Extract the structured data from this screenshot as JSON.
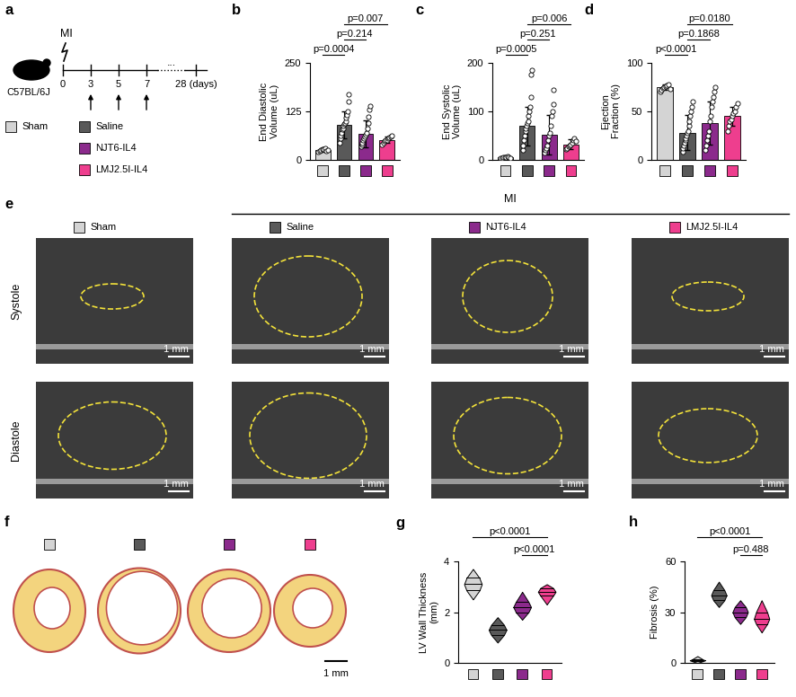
{
  "groups": [
    {
      "name": "Sham",
      "color": "#d4d4d4"
    },
    {
      "name": "Saline",
      "color": "#595959"
    },
    {
      "name": "NJT6-IL4",
      "color": "#8b2a8c"
    },
    {
      "name": "LMJ2.5I-IL4",
      "color": "#ee3e8e"
    }
  ],
  "timeline": {
    "panel": "a",
    "strain": "C57BL/6J",
    "event": "MI",
    "ticks": [
      0,
      3,
      5,
      7,
      {
        "value": 28,
        "label": "28 (days)"
      }
    ],
    "gap": "...",
    "treatment_days": [
      3,
      5,
      7
    ]
  },
  "chart_data": [
    {
      "panel": "b",
      "type": "bar",
      "ylabel": "End Diastolic\nVolume (uL)",
      "categories": [
        null,
        null,
        null,
        null
      ],
      "colors": [
        "#d4d4d4",
        "#595959",
        "#8b2a8c",
        "#ee3e8e"
      ],
      "values": [
        25,
        90,
        68,
        52
      ],
      "errors": [
        4,
        35,
        35,
        8
      ],
      "points": [
        [
          20,
          22,
          25,
          27,
          28,
          30,
          24,
          26
        ],
        [
          45,
          55,
          62,
          70,
          78,
          82,
          88,
          92,
          96,
          100,
          108,
          115,
          125,
          150,
          168
        ],
        [
          35,
          40,
          45,
          50,
          55,
          60,
          65,
          70,
          80,
          95,
          110,
          130,
          140
        ],
        [
          40,
          45,
          48,
          50,
          52,
          55,
          58,
          60,
          62
        ]
      ],
      "ylim": [
        0,
        250
      ],
      "yticks": [
        0,
        125,
        250
      ],
      "tick_labels": "y",
      "comparisons": [
        {
          "from": 0,
          "to": 1,
          "label": "p=0.0004"
        },
        {
          "from": 1,
          "to": 2,
          "label": "p=0.214"
        },
        {
          "from": 1,
          "to": 3,
          "label": "p=0.007"
        }
      ]
    },
    {
      "panel": "c",
      "type": "bar",
      "ylabel": "End Systolic\nVolume (uL)",
      "categories": [
        null,
        null,
        null,
        null
      ],
      "colors": [
        "#d4d4d4",
        "#595959",
        "#8b2a8c",
        "#ee3e8e"
      ],
      "values": [
        5,
        70,
        52,
        32
      ],
      "errors": [
        2,
        40,
        40,
        10
      ],
      "points": [
        [
          3,
          4,
          5,
          5,
          6,
          7,
          6,
          4
        ],
        [
          20,
          30,
          40,
          50,
          60,
          65,
          70,
          75,
          80,
          90,
          100,
          110,
          130,
          175,
          185
        ],
        [
          15,
          20,
          25,
          30,
          40,
          50,
          55,
          70,
          90,
          100,
          115,
          145
        ],
        [
          22,
          25,
          28,
          30,
          32,
          35,
          40,
          45,
          38
        ]
      ],
      "ylim": [
        0,
        200
      ],
      "yticks": [
        0,
        100,
        200
      ],
      "tick_labels": "y",
      "comparisons": [
        {
          "from": 0,
          "to": 1,
          "label": "p=0.0005"
        },
        {
          "from": 1,
          "to": 2,
          "label": "p=0.251"
        },
        {
          "from": 1,
          "to": 3,
          "label": "p=0.006"
        }
      ]
    },
    {
      "panel": "d",
      "type": "bar",
      "ylabel": "Ejection\nFraction (%)",
      "categories": [
        null,
        null,
        null,
        null
      ],
      "colors": [
        "#d4d4d4",
        "#595959",
        "#8b2a8c",
        "#ee3e8e"
      ],
      "values": [
        75,
        28,
        38,
        45
      ],
      "errors": [
        3,
        18,
        22,
        10
      ],
      "points": [
        [
          70,
          72,
          74,
          75,
          76,
          77,
          78,
          73
        ],
        [
          8,
          12,
          15,
          18,
          20,
          22,
          25,
          28,
          30,
          35,
          40,
          45,
          50,
          55,
          60
        ],
        [
          10,
          15,
          20,
          25,
          30,
          40,
          45,
          55,
          60,
          65,
          70,
          75
        ],
        [
          30,
          35,
          40,
          42,
          45,
          48,
          50,
          55,
          58
        ]
      ],
      "ylim": [
        0,
        100
      ],
      "yticks": [
        0,
        50,
        100
      ],
      "tick_labels": "y",
      "comparisons": [
        {
          "from": 0,
          "to": 1,
          "label": "p<0.0001"
        },
        {
          "from": 1,
          "to": 2,
          "label": "p=0.1868"
        },
        {
          "from": 1,
          "to": 3,
          "label": "p=0.0180"
        }
      ]
    },
    {
      "panel": "g",
      "type": "violin",
      "ylabel": "LV Wall Thickness\n(mm)",
      "categories": [
        null,
        null,
        null,
        null
      ],
      "colors": [
        "#d4d4d4",
        "#595959",
        "#8b2a8c",
        "#ee3e8e"
      ],
      "distributions": [
        {
          "min": 2.5,
          "q1": 2.85,
          "median": 3.1,
          "q3": 3.35,
          "max": 3.7
        },
        {
          "min": 0.8,
          "q1": 1.1,
          "median": 1.3,
          "q3": 1.5,
          "max": 1.8
        },
        {
          "min": 1.7,
          "q1": 2.0,
          "median": 2.2,
          "q3": 2.4,
          "max": 2.8
        },
        {
          "min": 2.3,
          "q1": 2.65,
          "median": 2.8,
          "q3": 2.95,
          "max": 3.1
        }
      ],
      "ylim": [
        0,
        4
      ],
      "yticks": [
        0,
        2,
        4
      ],
      "tick_labels": "y",
      "comparisons": [
        {
          "from": 2,
          "to": 3,
          "label": "p<0.0001"
        },
        {
          "from": 0,
          "to": 3,
          "label": "p<0.0001"
        }
      ]
    },
    {
      "panel": "h",
      "type": "violin",
      "ylabel": "Fibrosis (%)",
      "categories": [
        null,
        null,
        null,
        null
      ],
      "colors": [
        "#d4d4d4",
        "#595959",
        "#8b2a8c",
        "#ee3e8e"
      ],
      "distributions": [
        {
          "min": 0,
          "q1": 1,
          "median": 1.5,
          "q3": 2,
          "max": 4
        },
        {
          "min": 33,
          "q1": 37,
          "median": 40,
          "q3": 43,
          "max": 48
        },
        {
          "min": 23,
          "q1": 27,
          "median": 30,
          "q3": 33,
          "max": 37
        },
        {
          "min": 18,
          "q1": 23,
          "median": 26,
          "q3": 30,
          "max": 37
        }
      ],
      "ylim": [
        0,
        60
      ],
      "yticks": [
        0,
        30,
        60
      ],
      "tick_labels": "y",
      "comparisons": [
        {
          "from": 2,
          "to": 3,
          "label": "p=0.488"
        },
        {
          "from": 0,
          "to": 3,
          "label": "p<0.0001"
        }
      ]
    }
  ],
  "echo": {
    "panel": "e",
    "header": "MI",
    "rows": [
      "Systole",
      "Diastole"
    ],
    "scale_bar": "1 mm"
  },
  "histology": {
    "panel": "f",
    "scale_bar": "1 mm"
  }
}
